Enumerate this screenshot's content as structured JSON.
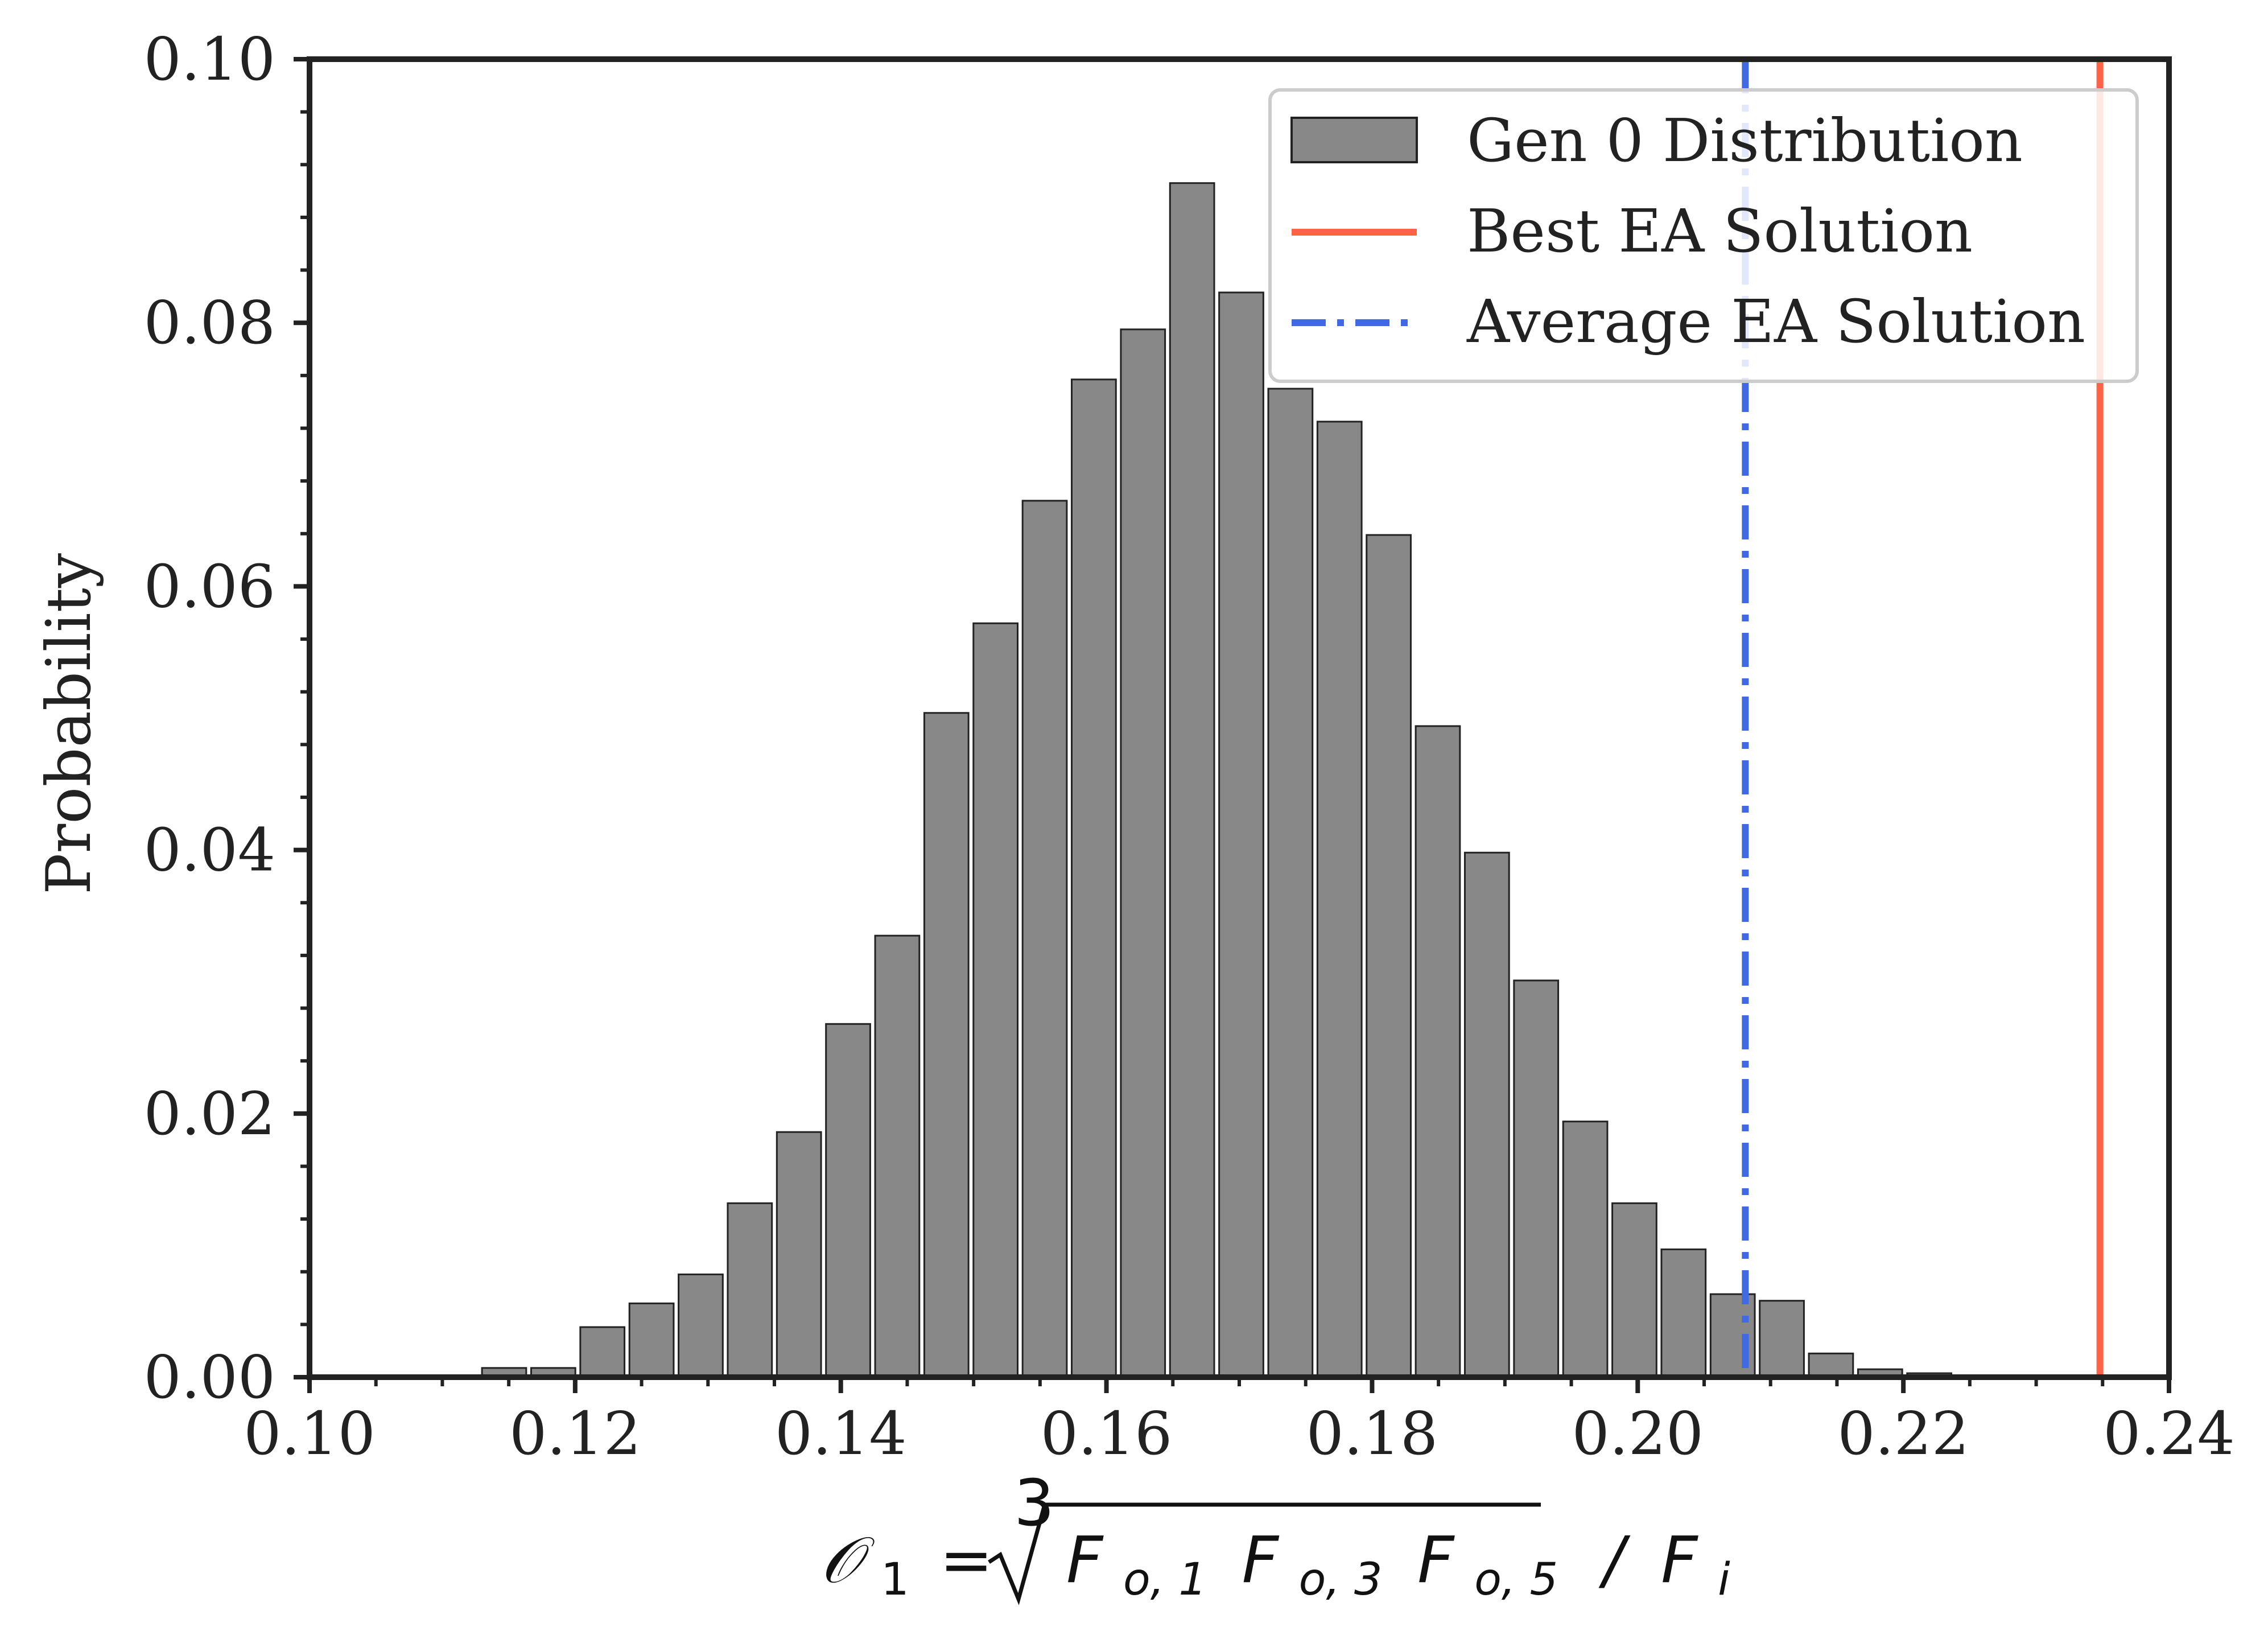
{
  "chart_data": {
    "type": "bar",
    "xlabel": "𝒪₁ = ∛(F_o,1 F_o,3 F_o,5) / F_i",
    "xlabel_parts": {
      "lhs": "𝒪",
      "lhs_sub": "1",
      "eq": "=",
      "root_index": "3",
      "f": "F",
      "sub1": "o, 1",
      "sub2": "o, 3",
      "sub3": "o, 5",
      "slash": "/",
      "fi": "F",
      "fi_sub": "i"
    },
    "ylabel": "Probability",
    "xlim": [
      0.1,
      0.24
    ],
    "ylim": [
      0.0,
      0.1
    ],
    "x_ticks": [
      "0.10",
      "0.12",
      "0.14",
      "0.16",
      "0.18",
      "0.20",
      "0.22",
      "0.24"
    ],
    "y_ticks": [
      "0.00",
      "0.02",
      "0.04",
      "0.06",
      "0.08",
      "0.10"
    ],
    "grid": false,
    "legend_position": "top-right",
    "series": [
      {
        "name": "Gen 0 Distribution",
        "kind": "histogram",
        "color": "#888888",
        "edge_color": "#222222",
        "bins": [
          {
            "x0": 0.1128,
            "x1": 0.1165,
            "value": 0.0007
          },
          {
            "x0": 0.1165,
            "x1": 0.1202,
            "value": 0.0007
          },
          {
            "x0": 0.1202,
            "x1": 0.1239,
            "value": 0.0038
          },
          {
            "x0": 0.1239,
            "x1": 0.1276,
            "value": 0.0056
          },
          {
            "x0": 0.1276,
            "x1": 0.1313,
            "value": 0.0078
          },
          {
            "x0": 0.1313,
            "x1": 0.135,
            "value": 0.0132
          },
          {
            "x0": 0.135,
            "x1": 0.1387,
            "value": 0.0186
          },
          {
            "x0": 0.1387,
            "x1": 0.1424,
            "value": 0.0268
          },
          {
            "x0": 0.1424,
            "x1": 0.1461,
            "value": 0.0335
          },
          {
            "x0": 0.1461,
            "x1": 0.1498,
            "value": 0.0504
          },
          {
            "x0": 0.1498,
            "x1": 0.1535,
            "value": 0.0572
          },
          {
            "x0": 0.1535,
            "x1": 0.1572,
            "value": 0.0665
          },
          {
            "x0": 0.1572,
            "x1": 0.1609,
            "value": 0.0757
          },
          {
            "x0": 0.1609,
            "x1": 0.1646,
            "value": 0.0795
          },
          {
            "x0": 0.1646,
            "x1": 0.1683,
            "value": 0.0906
          },
          {
            "x0": 0.1683,
            "x1": 0.172,
            "value": 0.0823
          },
          {
            "x0": 0.172,
            "x1": 0.1757,
            "value": 0.075
          },
          {
            "x0": 0.1757,
            "x1": 0.1794,
            "value": 0.0725
          },
          {
            "x0": 0.1794,
            "x1": 0.1831,
            "value": 0.0639
          },
          {
            "x0": 0.1831,
            "x1": 0.1868,
            "value": 0.0494
          },
          {
            "x0": 0.1868,
            "x1": 0.1905,
            "value": 0.0398
          },
          {
            "x0": 0.1905,
            "x1": 0.1942,
            "value": 0.0301
          },
          {
            "x0": 0.1942,
            "x1": 0.1979,
            "value": 0.0194
          },
          {
            "x0": 0.1979,
            "x1": 0.2016,
            "value": 0.0132
          },
          {
            "x0": 0.2016,
            "x1": 0.2053,
            "value": 0.0097
          },
          {
            "x0": 0.2053,
            "x1": 0.209,
            "value": 0.0063
          },
          {
            "x0": 0.209,
            "x1": 0.2127,
            "value": 0.0058
          },
          {
            "x0": 0.2127,
            "x1": 0.2164,
            "value": 0.0018
          },
          {
            "x0": 0.2164,
            "x1": 0.2201,
            "value": 0.0006
          },
          {
            "x0": 0.2201,
            "x1": 0.2238,
            "value": 0.0003
          }
        ]
      },
      {
        "name": "Best EA Solution",
        "kind": "vline",
        "x": 0.2348,
        "color": "#ff6347",
        "style": "solid"
      },
      {
        "name": "Average EA Solution",
        "kind": "vline",
        "x": 0.2081,
        "color": "#4169e1",
        "style": "dashdot"
      }
    ]
  }
}
